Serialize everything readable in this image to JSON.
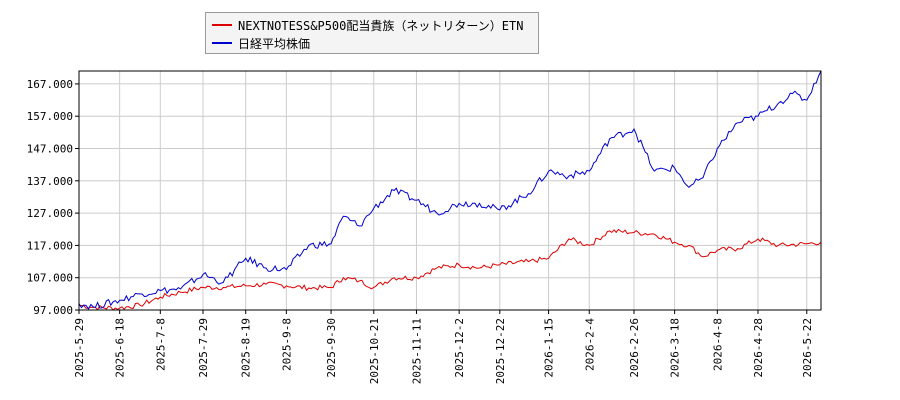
{
  "chart_data": {
    "type": "line",
    "title": "",
    "xlabel": "",
    "ylabel": "",
    "ylim": [
      97,
      171
    ],
    "yticks": [
      "97.000",
      "107.000",
      "117.000",
      "127.000",
      "137.000",
      "147.000",
      "157.000",
      "167.000"
    ],
    "xticks": [
      "2025-5-29",
      "2025-6-18",
      "2025-7-8",
      "2025-7-29",
      "2025-8-19",
      "2025-9-8",
      "2025-9-30",
      "2025-10-21",
      "2025-11-11",
      "2025-12-2",
      "2025-12-22",
      "2026-1-15",
      "2026-2-4",
      "2026-2-26",
      "2026-3-18",
      "2026-4-8",
      "2026-4-28",
      "2026-5-22"
    ],
    "grid": true,
    "legend_position": "top-left",
    "series": [
      {
        "name": "NEXTNOTESS&P500配当貴族（ネットリターン）ETN",
        "color": "#dd0000",
        "x": [
          "2025-5-29",
          "2025-6-5",
          "2025-6-18",
          "2025-6-28",
          "2025-7-8",
          "2025-7-18",
          "2025-7-29",
          "2025-8-8",
          "2025-8-19",
          "2025-8-29",
          "2025-9-8",
          "2025-9-19",
          "2025-9-30",
          "2025-10-6",
          "2025-10-14",
          "2025-10-21",
          "2025-10-31",
          "2025-11-11",
          "2025-11-21",
          "2025-12-2",
          "2025-12-12",
          "2025-12-22",
          "2026-1-5",
          "2026-1-15",
          "2026-1-25",
          "2026-2-4",
          "2026-2-14",
          "2026-2-26",
          "2026-3-8",
          "2026-3-18",
          "2026-3-25",
          "2026-4-1",
          "2026-4-8",
          "2026-4-18",
          "2026-4-28",
          "2026-5-8",
          "2026-5-22",
          "2026-5-29"
        ],
        "values": [
          98.5,
          97.8,
          97.6,
          98.5,
          101,
          102.5,
          104,
          104,
          104.5,
          105,
          104.5,
          103.8,
          104,
          107,
          106,
          104,
          107,
          107,
          110,
          111,
          110,
          111,
          112,
          113,
          119,
          117,
          121.5,
          121,
          120.5,
          118,
          117,
          113.5,
          115.5,
          116,
          119,
          117,
          117.5,
          118
        ]
      },
      {
        "name": "日経平均株価",
        "color": "#0000cc",
        "x": [
          "2025-5-29",
          "2025-6-5",
          "2025-6-18",
          "2025-6-28",
          "2025-7-8",
          "2025-7-18",
          "2025-7-29",
          "2025-8-8",
          "2025-8-19",
          "2025-8-29",
          "2025-9-8",
          "2025-9-19",
          "2025-9-30",
          "2025-10-6",
          "2025-10-14",
          "2025-10-21",
          "2025-10-31",
          "2025-11-11",
          "2025-11-21",
          "2025-12-2",
          "2025-12-12",
          "2025-12-22",
          "2026-1-5",
          "2026-1-15",
          "2026-1-25",
          "2026-2-4",
          "2026-2-14",
          "2026-2-26",
          "2026-3-8",
          "2026-3-18",
          "2026-3-25",
          "2026-4-1",
          "2026-4-8",
          "2026-4-18",
          "2026-4-28",
          "2026-5-8",
          "2026-5-15",
          "2026-5-22",
          "2026-5-29"
        ],
        "values": [
          99,
          98,
          100,
          102,
          103,
          103.5,
          108,
          105.5,
          113,
          110,
          109.5,
          117,
          117.5,
          126,
          123,
          128.5,
          134,
          131,
          127,
          130,
          130,
          128,
          133,
          140,
          138.5,
          140,
          150,
          153,
          140,
          141,
          135,
          138,
          147,
          155,
          157,
          161,
          164,
          162,
          171.5
        ]
      }
    ]
  }
}
